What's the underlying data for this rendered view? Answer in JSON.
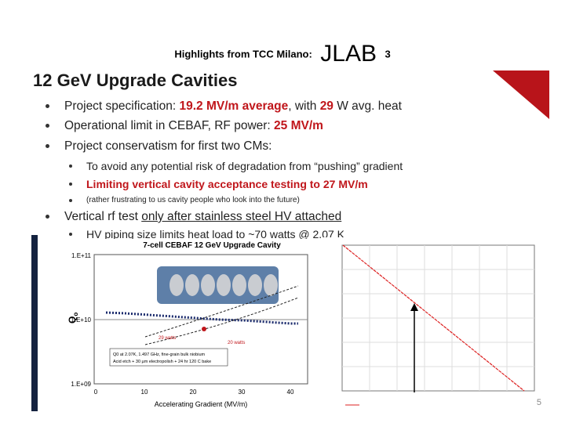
{
  "header": {
    "prefix": "Highlights from TCC Milano:",
    "logo": "JLAB",
    "number": "3"
  },
  "title": "12 GeV Upgrade Cavities",
  "bullets": [
    {
      "level": 1,
      "segments": [
        {
          "text": "Project specification: "
        },
        {
          "text": "19.2 MV/m average",
          "highlight": true
        },
        {
          "text": ", with "
        },
        {
          "text": "29",
          "highlight": true
        },
        {
          "text": " W avg. heat"
        }
      ]
    },
    {
      "level": 1,
      "segments": [
        {
          "text": "Operational limit in CEBAF, RF power: "
        },
        {
          "text": "25 MV/m",
          "highlight": true
        }
      ]
    },
    {
      "level": 1,
      "segments": [
        {
          "text": "Project conservatism for first two CMs:"
        }
      ]
    },
    {
      "level": 2,
      "segments": [
        {
          "text": "To avoid any potential risk of degradation from “pushing” gradient"
        }
      ]
    },
    {
      "level": 2,
      "segments": [
        {
          "text": "Limiting vertical cavity acceptance testing to 27 MV/m",
          "highlight": true
        }
      ]
    },
    {
      "level": 3,
      "segments": [
        {
          "text": "(rather frustrating to us cavity people who look into the future)"
        }
      ]
    },
    {
      "level": 1,
      "segments": [
        {
          "text": "Vertical rf test "
        },
        {
          "text": "only after stainless steel HV attached",
          "underline": true
        }
      ]
    },
    {
      "level": 2,
      "segments": [
        {
          "text": "HV piping size limits heat load to ~70 watts @ 2.07 K"
        }
      ]
    }
  ],
  "figure_left": {
    "title": "7-cell CEBAF 12 GeV Upgrade Cavity",
    "y_label": "Q",
    "y_label_sub": "o",
    "y_ticks": [
      "1.E+11",
      "1.E+10",
      "1.E+09"
    ],
    "x_ticks": [
      "0",
      "10",
      "20",
      "30",
      "40"
    ],
    "x_label": "Accelerating Gradient (MV/m)",
    "annotations": [
      "29 watts",
      "20 watts"
    ],
    "note": [
      "Q0 at 2.07K, 1.497 GHz, fine-grain bulk niobium",
      "Acid etch + 30 µm electropolish + 24 hr 120 C bake"
    ]
  },
  "page_number": "5"
}
